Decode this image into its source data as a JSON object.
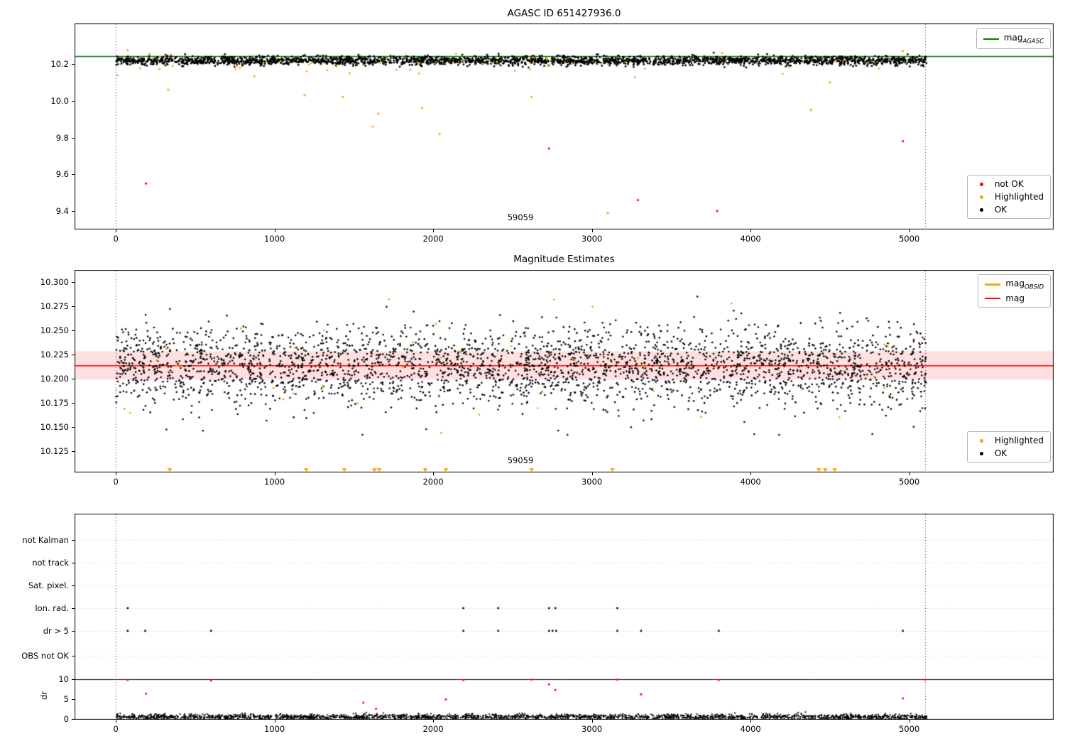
{
  "colors": {
    "ok": "#000000",
    "not_ok": "#ff0000",
    "highlighted": "#ffa500",
    "mag_agasc_line": "#008000",
    "mag_obsid_line": "#ffa500",
    "mag_line": "#ff0000",
    "band_fill": "rgba(255,0,0,0.12)",
    "vline": "#800080",
    "grid": "#c8c8c8",
    "spine": "#000000"
  },
  "x_axis": {
    "lim": [
      -260,
      5910
    ],
    "ticks": [
      0,
      1000,
      2000,
      3000,
      4000,
      5000
    ]
  },
  "chart_data": [
    {
      "type": "scatter",
      "title": "AGASC ID 651427936.0",
      "ylim": [
        9.3,
        10.42
      ],
      "yticks": [
        9.4,
        9.6,
        9.8,
        10.0,
        10.2
      ],
      "ytick_decimals": 1,
      "vlines": [
        0,
        5100
      ],
      "hline": {
        "y": 10.24,
        "color": "#008000"
      },
      "annotation": {
        "text": "59059",
        "x": 2550
      },
      "legend_top": [
        {
          "marker": "line",
          "color": "#008000",
          "text": "mag",
          "sub": "AGASC"
        }
      ],
      "legend_bottom": [
        {
          "marker": "dot",
          "color": "#ff0000",
          "text": "not OK"
        },
        {
          "marker": "dot",
          "color": "#ffa500",
          "text": "Highlighted"
        },
        {
          "marker": "dot",
          "color": "#000000",
          "text": "OK"
        }
      ],
      "series": {
        "ok": {
          "n": 2600,
          "x_range": [
            0,
            5110
          ],
          "y_mean": 10.218,
          "y_std": 0.012,
          "y_clip": [
            10.155,
            10.272
          ],
          "seed": 11,
          "r": 1.4,
          "color": "#000000"
        },
        "highlighted_band": {
          "n": 60,
          "x_range": [
            0,
            5110
          ],
          "y_mean": 10.205,
          "y_std": 0.028,
          "y_clip": [
            10.1,
            10.285
          ],
          "seed": 12,
          "r": 1.4,
          "color": "#ffa500"
        },
        "highlighted_points": [
          [
            75,
            10.275
          ],
          [
            330,
            10.06
          ],
          [
            1190,
            10.03
          ],
          [
            1430,
            10.02
          ],
          [
            1620,
            9.86
          ],
          [
            1655,
            9.93
          ],
          [
            1930,
            9.96
          ],
          [
            2040,
            9.82
          ],
          [
            2620,
            10.02
          ],
          [
            3100,
            9.39
          ],
          [
            4380,
            9.95
          ],
          [
            4500,
            10.1
          ],
          [
            4960,
            10.27
          ]
        ],
        "not_ok_points": [
          [
            190,
            9.55
          ],
          [
            2730,
            9.74
          ],
          [
            3290,
            9.46
          ],
          [
            3790,
            9.4
          ],
          [
            4960,
            9.78
          ]
        ]
      }
    },
    {
      "type": "scatter",
      "title": "Magnitude Estimates",
      "ylim": [
        10.103,
        10.3125
      ],
      "yticks": [
        10.125,
        10.15,
        10.175,
        10.2,
        10.225,
        10.25,
        10.275,
        10.3
      ],
      "ytick_decimals": 3,
      "vlines": [
        0,
        5100
      ],
      "hline": {
        "y": 10.2135,
        "color": "#ff0000"
      },
      "band": {
        "y0": 10.199,
        "y1": 10.2285,
        "color": "rgba(255,0,0,0.12)"
      },
      "annotation": {
        "text": "59059",
        "x": 2550
      },
      "legend_top": [
        {
          "marker": "line",
          "color": "#ffa500",
          "text": "mag",
          "sub": "OBSID",
          "lw": 3
        },
        {
          "marker": "line",
          "color": "#ff0000",
          "text": "mag"
        }
      ],
      "legend_bottom": [
        {
          "marker": "dot",
          "color": "#ffa500",
          "text": "Highlighted"
        },
        {
          "marker": "dot",
          "color": "#000000",
          "text": "OK"
        }
      ],
      "series": {
        "ok": {
          "n": 3000,
          "x_range": [
            0,
            5110
          ],
          "y_mean": 10.213,
          "y_std": 0.02,
          "y_clip": [
            10.142,
            10.285
          ],
          "seed": 13,
          "r": 1.3,
          "color": "#000000"
        },
        "highlighted_band": {
          "n": 40,
          "x_range": [
            0,
            5110
          ],
          "y_mean": 10.215,
          "y_std": 0.04,
          "y_clip": [
            10.118,
            10.282
          ],
          "seed": 14,
          "r": 1.4,
          "color": "#ffa500"
        },
        "triangle_x": [
          340,
          1200,
          1440,
          1630,
          1660,
          1950,
          2080,
          2620,
          3130,
          4430,
          4470,
          4530
        ]
      }
    },
    {
      "type": "flags",
      "rows": [
        "not Kalman",
        "not track",
        "Sat. pixel.",
        "Ion. rad.",
        "dr > 5",
        "OBS not OK"
      ],
      "ylabel": "dr",
      "dr_ticks": [
        0,
        5,
        10
      ],
      "dr_hline": 10,
      "vlines": [
        0,
        5100
      ],
      "series": {
        "ion_rad_x": [
          75,
          2190,
          2410,
          2730,
          2770,
          3160
        ],
        "dr5_x": [
          75,
          185,
          600,
          2190,
          2410,
          2730,
          2752,
          2775,
          3160,
          3310,
          3800,
          4960
        ],
        "dr_ok": {
          "n": 2200,
          "x_range": [
            0,
            5110
          ],
          "y_mean": 0.55,
          "y_std": 0.33,
          "y_clip": [
            0.04,
            2.8
          ],
          "seed": 15,
          "r": 1.1,
          "color": "#000000"
        },
        "dr_red_points": [
          [
            75,
            9.8
          ],
          [
            190,
            6.4
          ],
          [
            600,
            9.7
          ],
          [
            1560,
            4.1
          ],
          [
            1640,
            2.6
          ],
          [
            2080,
            4.9
          ],
          [
            2190,
            9.8
          ],
          [
            2620,
            9.9
          ],
          [
            2730,
            8.7
          ],
          [
            2770,
            7.3
          ],
          [
            3160,
            9.9
          ],
          [
            3310,
            6.2
          ],
          [
            3800,
            9.8
          ],
          [
            4960,
            5.2
          ],
          [
            5100,
            9.9
          ]
        ]
      }
    }
  ]
}
